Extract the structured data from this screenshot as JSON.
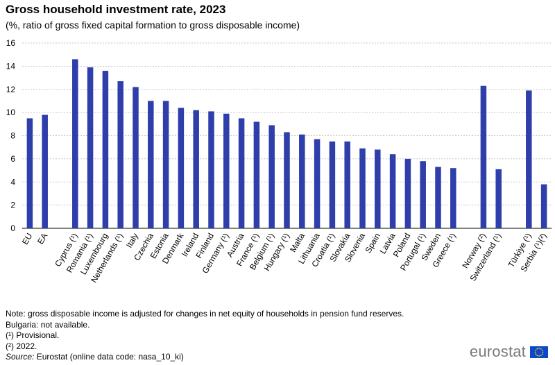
{
  "header": {
    "title": "Gross household investment rate, 2023",
    "subtitle": "(%, ratio of gross fixed capital formation to gross disposable income)"
  },
  "chart_data": {
    "type": "bar",
    "title": "Gross household investment rate, 2023",
    "subtitle": "(%, ratio of gross fixed capital formation to gross disposable income)",
    "xlabel": "",
    "ylabel": "",
    "ylim": [
      0,
      16
    ],
    "yticks": [
      0,
      2,
      4,
      6,
      8,
      10,
      12,
      14,
      16
    ],
    "grid": true,
    "bar_color": "#2e3eaa",
    "categories": [
      "EU",
      "EA",
      "",
      "Cyprus (¹)",
      "Romania (¹)",
      "Luxembourg",
      "Netherlands (¹)",
      "Italy",
      "Czechia",
      "Estonia",
      "Denmark",
      "Ireland",
      "Finland",
      "Germany (¹)",
      "Austria",
      "France (¹)",
      "Belgium (¹)",
      "Hungary (¹)",
      "Malta",
      "Lithuania",
      "Croatia (¹)",
      "Slovakia",
      "Slovenia",
      "Spain",
      "Latvia",
      "Poland",
      "Portugal (¹)",
      "Sweden",
      "Greece (¹)",
      "",
      "Norway (²)",
      "Switzerland (¹)",
      "",
      "Türkiye (¹)",
      "Serbia (¹)(²)"
    ],
    "values": [
      9.5,
      9.8,
      null,
      14.6,
      13.9,
      13.6,
      12.7,
      12.2,
      11.0,
      11.0,
      10.4,
      10.2,
      10.1,
      9.9,
      9.5,
      9.2,
      8.9,
      8.3,
      8.1,
      7.7,
      7.5,
      7.5,
      6.9,
      6.8,
      6.4,
      6.0,
      5.8,
      5.3,
      5.2,
      null,
      12.3,
      5.1,
      null,
      11.9,
      3.8
    ]
  },
  "notes": {
    "note": "Note: gross disposable income is adjusted for changes in net equity of households in pension fund reserves.",
    "bulgaria": "Bulgaria: not available.",
    "fn1": "(¹) Provisional.",
    "fn2": "(²) 2022.",
    "source_label": "Source:",
    "source_text": " Eurostat (online data code: nasa_10_ki)"
  },
  "logo": {
    "text": "eurostat",
    "flag_color": "#0e47cb",
    "star_color": "#ffdd00"
  }
}
